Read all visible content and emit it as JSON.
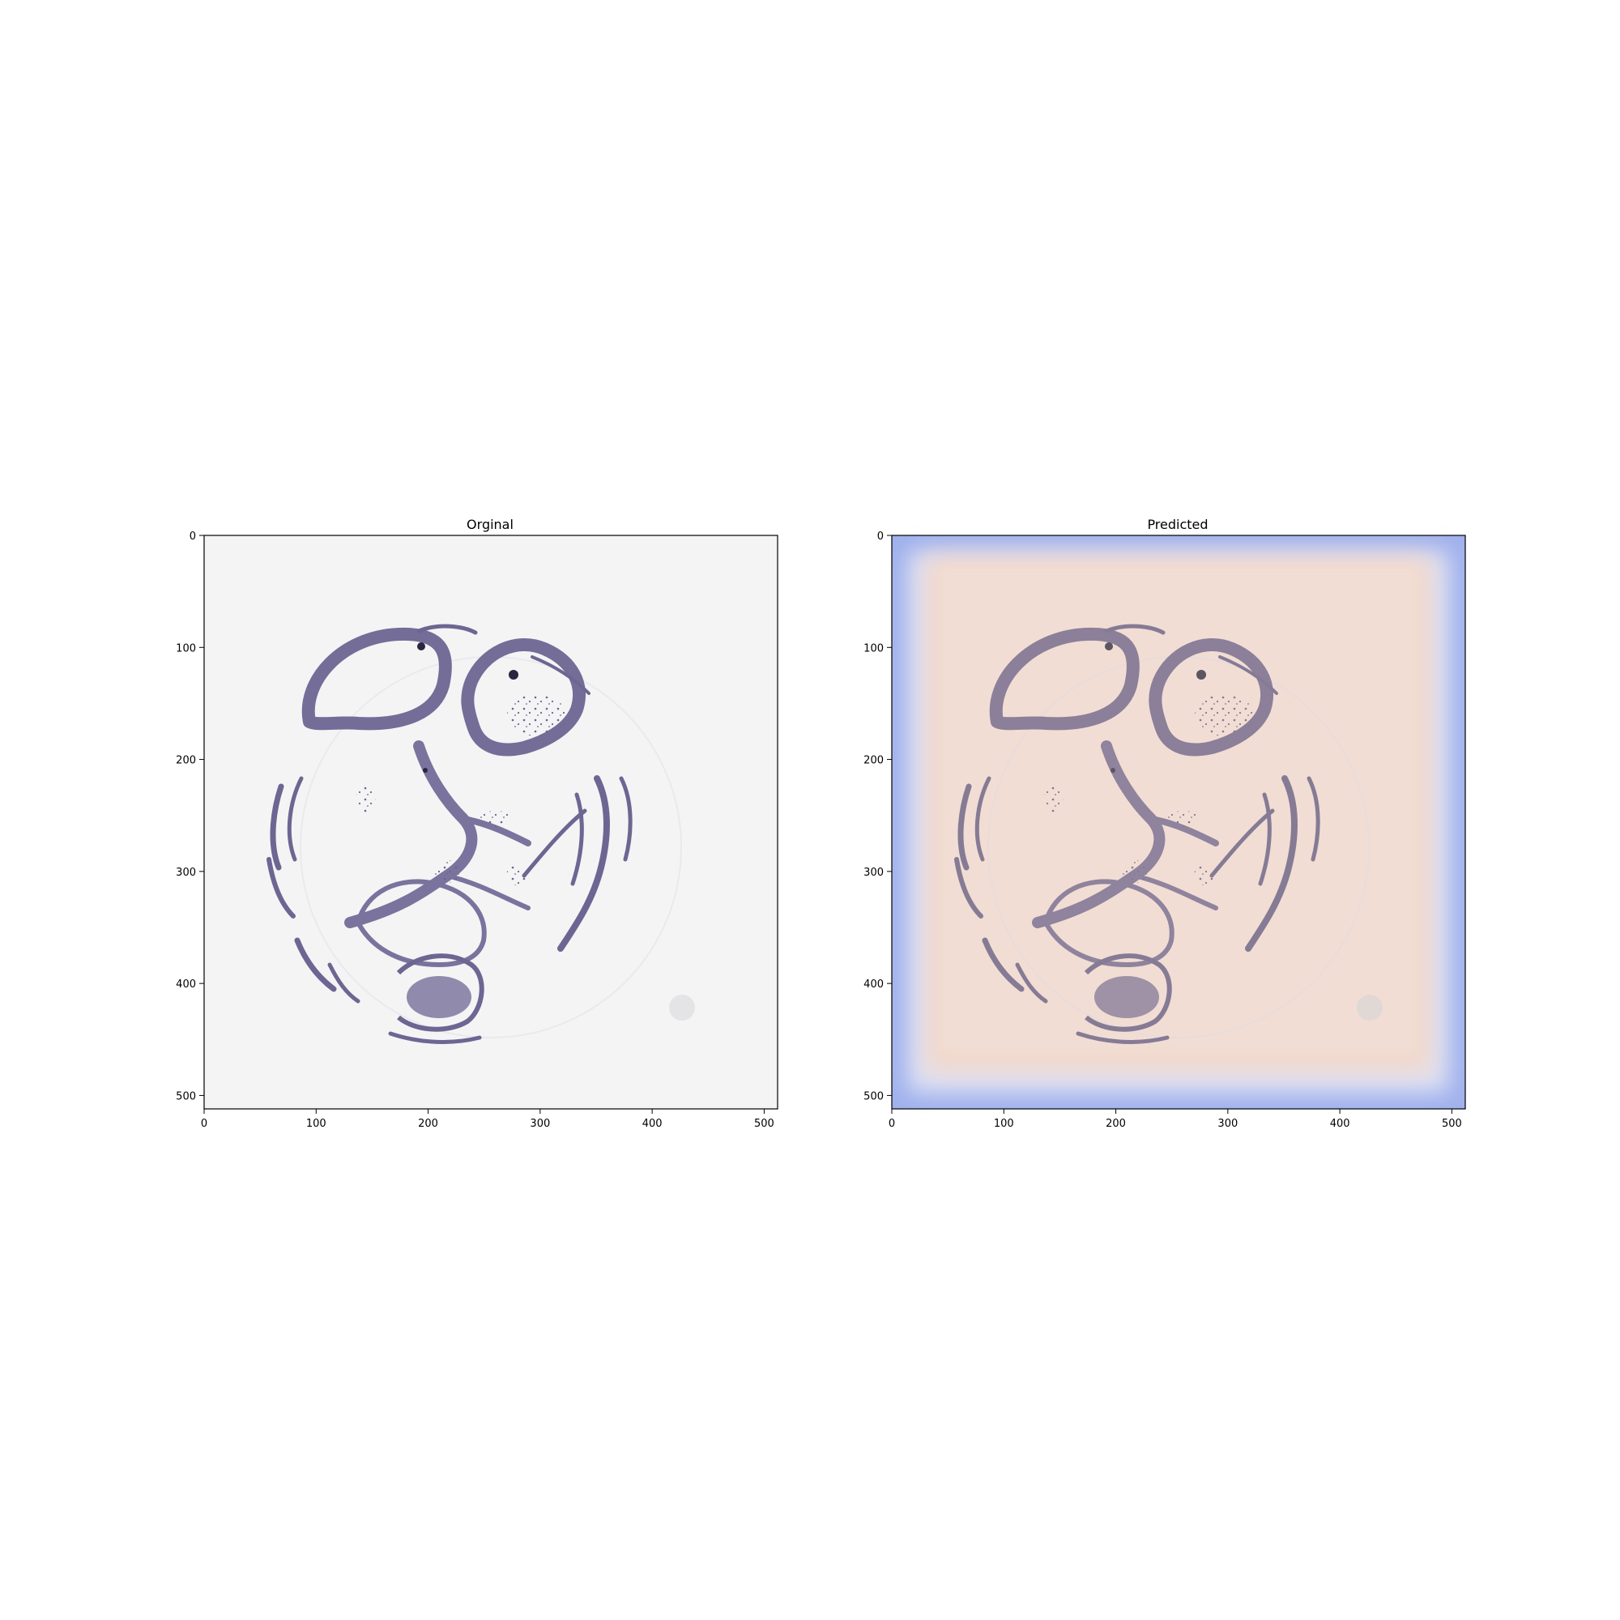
{
  "figure": {
    "panels": [
      {
        "title": "Orginal",
        "x_ticks": [
          "0",
          "100",
          "200",
          "300",
          "400",
          "500"
        ],
        "y_ticks": [
          "0",
          "100",
          "200",
          "300",
          "400",
          "500"
        ],
        "x_range": [
          0,
          512
        ],
        "y_range": [
          512,
          0
        ],
        "image": "tissue microarray core, H&E stain, grey background"
      },
      {
        "title": "Predicted",
        "x_ticks": [
          "0",
          "100",
          "200",
          "300",
          "400",
          "500"
        ],
        "y_ticks": [
          "0",
          "100",
          "200",
          "300",
          "400",
          "500"
        ],
        "x_range": [
          0,
          512
        ],
        "y_range": [
          512,
          0
        ],
        "image": "same tissue core overlaid with a peach heatmap and blue border"
      }
    ],
    "colors": {
      "original_bg": "#f4f4f5",
      "tissue": "#5a5480",
      "overlay_center": "#f2d8cc",
      "overlay_edge": "#9fb0ec"
    }
  }
}
